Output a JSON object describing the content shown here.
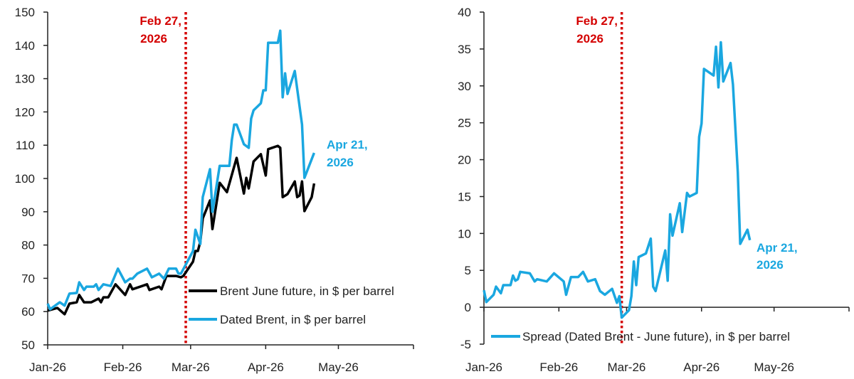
{
  "colors": {
    "dated": "#1aa7e0",
    "future": "#000000",
    "event": "#d40000",
    "spread": "#1aa7e0"
  },
  "chart_data": [
    {
      "type": "line",
      "x_ticks": [
        "Jan-26",
        "Feb-26",
        "Mar-26",
        "Apr-26",
        "May-26"
      ],
      "x_tick_dates": [
        "2026-01-01",
        "2026-02-01",
        "2026-03-01",
        "2026-04-01",
        "2026-05-01"
      ],
      "xlim": [
        "2026-01-01",
        "2026-06-01"
      ],
      "ylim": [
        50,
        150
      ],
      "y_ticks": [
        50,
        60,
        70,
        80,
        90,
        100,
        110,
        120,
        130,
        140,
        150
      ],
      "grid": false,
      "legend_position": "bottom-center",
      "event_line": {
        "date": "2026-02-27",
        "label_line1": "Feb 27,",
        "label_line2": "2026"
      },
      "end_label": {
        "line1": "Apr 21,",
        "line2": "2026"
      },
      "series": [
        {
          "name": "Brent June future, in $ per barrel",
          "color": "#000000",
          "x": [
            "2026-01-01",
            "2026-01-05",
            "2026-01-08",
            "2026-01-10",
            "2026-01-13",
            "2026-01-14",
            "2026-01-16",
            "2026-01-19",
            "2026-01-22",
            "2026-01-23",
            "2026-01-24",
            "2026-01-26",
            "2026-01-29",
            "2026-02-02",
            "2026-02-04",
            "2026-02-05",
            "2026-02-09",
            "2026-02-11",
            "2026-02-12",
            "2026-02-16",
            "2026-02-17",
            "2026-02-19",
            "2026-02-23",
            "2026-02-25",
            "2026-02-26",
            "2026-03-02",
            "2026-03-03",
            "2026-03-04",
            "2026-03-05",
            "2026-03-06",
            "2026-03-09",
            "2026-03-10",
            "2026-03-13",
            "2026-03-16",
            "2026-03-20",
            "2026-03-23",
            "2026-03-24",
            "2026-03-25",
            "2026-03-27",
            "2026-03-30",
            "2026-04-01",
            "2026-04-02",
            "2026-04-06",
            "2026-04-07",
            "2026-04-08",
            "2026-04-10",
            "2026-04-13",
            "2026-04-14",
            "2026-04-15",
            "2026-04-16",
            "2026-04-17",
            "2026-04-20",
            "2026-04-21"
          ],
          "y": [
            60.3,
            61.1,
            59.2,
            62.4,
            62.8,
            65.0,
            62.8,
            62.8,
            63.9,
            62.8,
            64.3,
            64.3,
            68.2,
            65.0,
            68.2,
            66.7,
            67.7,
            68.2,
            66.5,
            67.5,
            66.7,
            70.7,
            70.7,
            70.3,
            70.7,
            75.0,
            78.2,
            78.2,
            81.0,
            88.0,
            93.4,
            84.8,
            98.7,
            95.9,
            106.2,
            95.5,
            100.2,
            97.0,
            105.1,
            107.3,
            100.9,
            108.8,
            109.8,
            109.2,
            94.4,
            95.3,
            99.1,
            94.4,
            94.9,
            99.1,
            90.2,
            94.4,
            98.5
          ]
        },
        {
          "name": "Dated Brent, in $ per barrel",
          "color": "#1aa7e0",
          "x": [
            "2026-01-01",
            "2026-01-02",
            "2026-01-06",
            "2026-01-08",
            "2026-01-10",
            "2026-01-13",
            "2026-01-14",
            "2026-01-16",
            "2026-01-17",
            "2026-01-20",
            "2026-01-21",
            "2026-01-22",
            "2026-01-24",
            "2026-01-27",
            "2026-01-30",
            "2026-02-02",
            "2026-02-04",
            "2026-02-05",
            "2026-02-07",
            "2026-02-11",
            "2026-02-13",
            "2026-02-16",
            "2026-02-18",
            "2026-02-20",
            "2026-02-23",
            "2026-02-24",
            "2026-02-25",
            "2026-02-27",
            "2026-03-02",
            "2026-03-03",
            "2026-03-05",
            "2026-03-06",
            "2026-03-09",
            "2026-03-10",
            "2026-03-13",
            "2026-03-17",
            "2026-03-18",
            "2026-03-19",
            "2026-03-20",
            "2026-03-23",
            "2026-03-25",
            "2026-03-26",
            "2026-03-27",
            "2026-03-30",
            "2026-03-31",
            "2026-04-01",
            "2026-04-02",
            "2026-04-06",
            "2026-04-07",
            "2026-04-08",
            "2026-04-09",
            "2026-04-10",
            "2026-04-13",
            "2026-04-16",
            "2026-04-17",
            "2026-04-21"
          ],
          "y": [
            62.4,
            60.7,
            62.8,
            61.8,
            65.4,
            65.6,
            68.8,
            66.5,
            67.5,
            67.5,
            68.2,
            66.5,
            68.2,
            67.7,
            72.9,
            68.8,
            69.9,
            69.9,
            71.4,
            72.9,
            70.3,
            71.4,
            69.9,
            72.9,
            72.9,
            71.4,
            71.4,
            74.1,
            78.2,
            84.6,
            80.3,
            94.4,
            102.8,
            90.0,
            103.8,
            103.8,
            111.5,
            116.2,
            116.2,
            110.3,
            109.2,
            118.0,
            120.5,
            122.6,
            126.5,
            126.5,
            140.8,
            140.8,
            144.4,
            124.4,
            131.6,
            125.4,
            132.3,
            116.2,
            100.2,
            107.7
          ]
        }
      ]
    },
    {
      "type": "line",
      "x_ticks": [
        "Jan-26",
        "Feb-26",
        "Mar-26",
        "Apr-26",
        "May-26"
      ],
      "x_tick_dates": [
        "2026-01-01",
        "2026-02-01",
        "2026-03-01",
        "2026-04-01",
        "2026-05-01"
      ],
      "xlim": [
        "2026-01-01",
        "2026-06-01"
      ],
      "ylim": [
        -5,
        40
      ],
      "y_ticks": [
        -5,
        0,
        5,
        10,
        15,
        20,
        25,
        30,
        35,
        40
      ],
      "grid": false,
      "legend_position": "bottom-left",
      "event_line": {
        "date": "2026-02-27",
        "label_line1": "Feb 27,",
        "label_line2": "2026"
      },
      "end_label": {
        "line1": "Apr 21,",
        "line2": "2026"
      },
      "series": [
        {
          "name": "Spread (Dated Brent - June future), in $ per barrel",
          "color": "#1aa7e0",
          "x": [
            "2026-01-01",
            "2026-01-02",
            "2026-01-05",
            "2026-01-06",
            "2026-01-08",
            "2026-01-09",
            "2026-01-12",
            "2026-01-13",
            "2026-01-14",
            "2026-01-15",
            "2026-01-16",
            "2026-01-20",
            "2026-01-22",
            "2026-01-23",
            "2026-01-27",
            "2026-01-30",
            "2026-02-03",
            "2026-02-04",
            "2026-02-06",
            "2026-02-09",
            "2026-02-11",
            "2026-02-13",
            "2026-02-16",
            "2026-02-18",
            "2026-02-20",
            "2026-02-23",
            "2026-02-25",
            "2026-02-26",
            "2026-02-27",
            "2026-03-02",
            "2026-03-03",
            "2026-03-04",
            "2026-03-05",
            "2026-03-06",
            "2026-03-09",
            "2026-03-11",
            "2026-03-12",
            "2026-03-13",
            "2026-03-17",
            "2026-03-18",
            "2026-03-19",
            "2026-03-20",
            "2026-03-23",
            "2026-03-24",
            "2026-03-26",
            "2026-03-27",
            "2026-03-30",
            "2026-03-31",
            "2026-04-01",
            "2026-04-02",
            "2026-04-06",
            "2026-04-07",
            "2026-04-08",
            "2026-04-09",
            "2026-04-10",
            "2026-04-13",
            "2026-04-14",
            "2026-04-16",
            "2026-04-17",
            "2026-04-20",
            "2026-04-21"
          ],
          "y": [
            2.3,
            0.7,
            1.7,
            2.8,
            1.9,
            3.0,
            3.0,
            4.3,
            3.6,
            3.8,
            4.8,
            4.6,
            3.5,
            3.8,
            3.5,
            4.6,
            3.5,
            1.7,
            4.1,
            4.1,
            4.8,
            3.5,
            3.8,
            2.2,
            1.7,
            2.5,
            0.6,
            1.5,
            -1.4,
            -0.4,
            1.5,
            6.2,
            3.0,
            6.8,
            7.3,
            9.3,
            2.8,
            2.2,
            7.7,
            3.6,
            12.6,
            9.7,
            14.1,
            10.2,
            15.5,
            15.0,
            15.5,
            23.1,
            24.9,
            32.3,
            31.4,
            35.3,
            29.8,
            35.9,
            30.6,
            33.1,
            30.2,
            18.3,
            8.6,
            10.5,
            9.1
          ]
        }
      ]
    }
  ]
}
